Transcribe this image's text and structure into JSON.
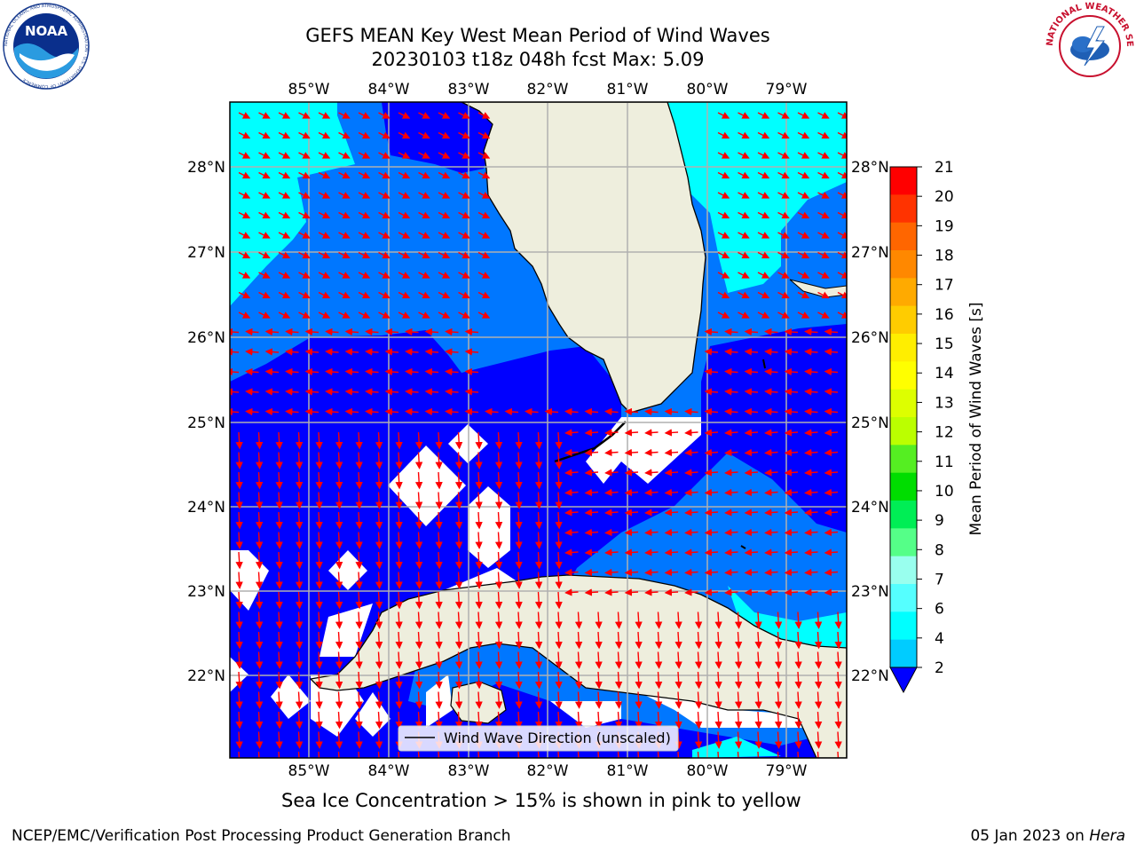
{
  "header": {
    "title_line1": "GEFS MEAN Key West Mean Period of Wind Waves",
    "title_line2": "20230103 t18z 048h fcst   Max: 5.09"
  },
  "logos": {
    "left": {
      "icon": "noaa-logo",
      "text": "NOAA",
      "ring_text": "NATIONAL OCEANIC AND ATMOSPHERIC ADMINISTRATION · U.S. DEPARTMENT OF COMMERCE"
    },
    "right": {
      "icon": "nws-logo",
      "ring_text": "NATIONAL WEATHER SERVICE"
    }
  },
  "map": {
    "lon_ticks": [
      "85°W",
      "84°W",
      "83°W",
      "82°W",
      "81°W",
      "80°W",
      "79°W"
    ],
    "lat_ticks_left": [
      "28°N",
      "27°N",
      "26°N",
      "25°N",
      "24°N",
      "23°N",
      "22°N"
    ],
    "lat_ticks_right": [
      "28°N",
      "27°N",
      "26°N",
      "25°N",
      "24°N",
      "23°N",
      "22°N"
    ],
    "legend_label": "Wind Wave Direction (unscaled)",
    "colors": {
      "land": "#eeeedd",
      "coast": "#000000",
      "arrow": "#ff0000",
      "grid": "#b0b0b0",
      "band_2_4": "#0000ff",
      "band_4_6": "#0077ff",
      "band_6_8": "#00ffff"
    }
  },
  "colorbar": {
    "label": "Mean Period of Wind Waves [s]",
    "ticks": [
      "21",
      "20",
      "19",
      "18",
      "17",
      "16",
      "15",
      "14",
      "13",
      "12",
      "11",
      "10",
      "9",
      "8",
      "7",
      "6",
      "4",
      "2"
    ],
    "colors": [
      "#ff0000",
      "#ff3300",
      "#ff6600",
      "#ff8800",
      "#ffaa00",
      "#ffcc00",
      "#ffee00",
      "#ffff00",
      "#ddff00",
      "#bbff00",
      "#55ee22",
      "#00dd00",
      "#00ee55",
      "#55ff88",
      "#99ffee",
      "#55ffff",
      "#00ffff",
      "#00ccff",
      "#0077ff"
    ]
  },
  "footer": {
    "caption": "Sea Ice Concentration > 15% is shown in pink to yellow",
    "credit_left": "NCEP/EMC/Verification Post Processing Product Generation Branch",
    "credit_date": "05 Jan 2023 on",
    "credit_host": "Hera"
  }
}
